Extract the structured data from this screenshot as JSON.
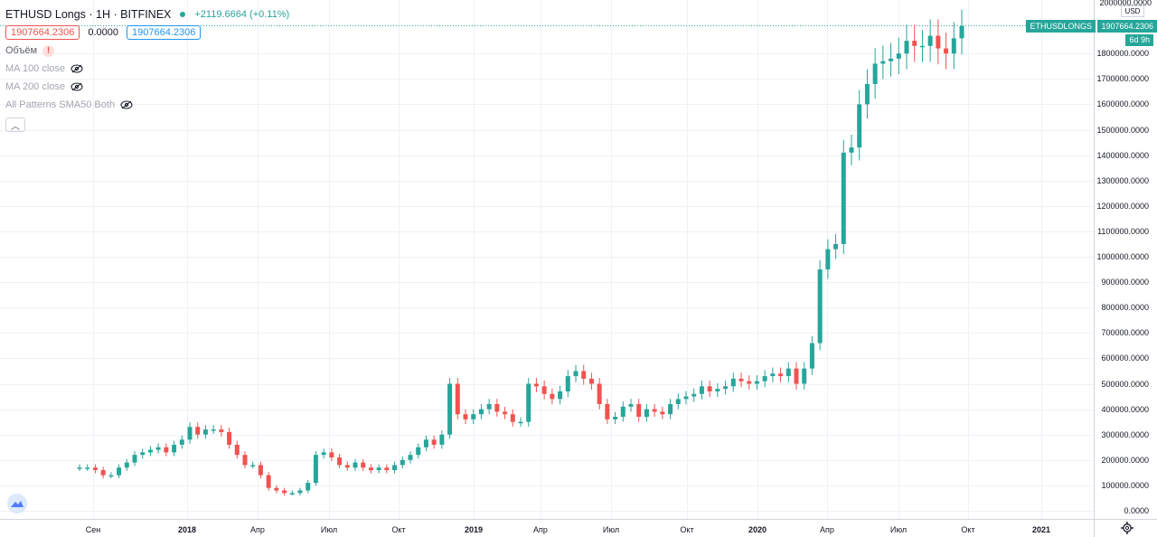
{
  "header": {
    "title": "ETHUSD Longs · 1H · BITFINEX",
    "change": "+2119.6664 (+0.11%)",
    "value_open": "1907664.2306",
    "value_zero": "0.0000",
    "value_close": "1907664.2306"
  },
  "indicators": [
    {
      "label": "Объём"
    },
    {
      "label": "MA 100 close"
    },
    {
      "label": "MA 200 close"
    },
    {
      "label": "All Patterns SMA50 Both"
    }
  ],
  "price_axis": {
    "currency": "USD",
    "top_label": "2000000.0000",
    "ticks": [
      "1800000.0000",
      "1700000.0000",
      "1600000.0000",
      "1500000.0000",
      "1400000.0000",
      "1300000.0000",
      "1200000.0000",
      "1100000.0000",
      "1000000.0000",
      "900000.0000",
      "800000.0000",
      "700000.0000",
      "600000.0000",
      "500000.0000",
      "400000.0000",
      "300000.0000",
      "200000.0000",
      "100000.0000",
      "0.0000"
    ],
    "last_name": "ETHUSDLONGS",
    "last_value": "1907664.2306",
    "countdown": "6d 9h"
  },
  "time_axis": {
    "labels": [
      "Сен",
      "2018",
      "Апр",
      "Июл",
      "Окт",
      "2019",
      "Апр",
      "Июл",
      "Окт",
      "2020",
      "Апр",
      "Июл",
      "Окт",
      "2021"
    ]
  },
  "colors": {
    "up": "#26a69a",
    "down": "#ef5350",
    "grid": "#eef1f6",
    "accent": "#2196f3"
  },
  "chart_data": {
    "type": "candlestick",
    "title": "ETHUSD Longs · 1H · BITFINEX",
    "ylabel": "USD",
    "ylim": [
      0,
      2000000
    ],
    "grid": true,
    "x_ticks": [
      "Сен",
      "2018",
      "Апр",
      "Июл",
      "Окт",
      "2019",
      "Апр",
      "Июл",
      "Окт",
      "2020",
      "Апр",
      "Июл",
      "Окт",
      "2021"
    ],
    "series": [
      {
        "values": [
          170000,
          170000,
          160000,
          140000,
          140000,
          170000,
          190000,
          220000,
          230000,
          240000,
          250000,
          230000,
          260000,
          280000,
          330000,
          300000,
          320000,
          320000,
          310000,
          260000,
          220000,
          180000,
          180000,
          140000,
          90000,
          80000,
          70000,
          70000,
          80000,
          110000,
          220000,
          230000,
          210000,
          180000,
          170000,
          190000,
          170000,
          160000,
          170000,
          160000,
          180000,
          200000,
          220000,
          250000,
          280000,
          260000,
          300000,
          500000,
          380000,
          360000,
          380000,
          400000,
          420000,
          390000,
          380000,
          350000,
          350000,
          500000,
          490000,
          460000,
          440000,
          470000,
          530000,
          550000,
          520000,
          500000,
          420000,
          360000,
          370000,
          410000,
          420000,
          370000,
          400000,
          390000,
          380000,
          420000,
          440000,
          450000,
          460000,
          490000,
          470000,
          480000,
          490000,
          520000,
          510000,
          500000,
          510000,
          530000,
          540000,
          530000,
          560000,
          500000,
          560000,
          660000,
          950000,
          1030000,
          1050000,
          1410000,
          1430000,
          1600000,
          1680000,
          1760000,
          1770000,
          1780000,
          1800000,
          1850000,
          1830000,
          1830000,
          1870000,
          1820000,
          1800000,
          1860000,
          1907664
        ]
      }
    ]
  }
}
